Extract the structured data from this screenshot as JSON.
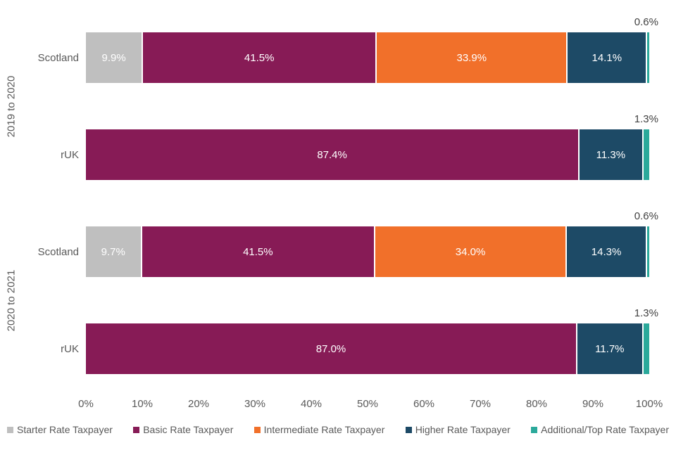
{
  "chart_data": {
    "type": "bar",
    "orientation": "horizontal",
    "stacked": true,
    "title": "",
    "xlabel": "",
    "ylabel": "",
    "xlim": [
      0,
      100
    ],
    "grid": false,
    "axis_ticks": [
      "0%",
      "10%",
      "20%",
      "30%",
      "40%",
      "50%",
      "60%",
      "70%",
      "80%",
      "90%",
      "100%"
    ],
    "legend_position": "bottom",
    "series": [
      {
        "name": "Starter Rate Taxpayer",
        "color": "#BFBFBF"
      },
      {
        "name": "Basic Rate Taxpayer",
        "color": "#871B56"
      },
      {
        "name": "Intermediate Rate Taxpayer",
        "color": "#F1702A"
      },
      {
        "name": "Higher Rate Taxpayer",
        "color": "#1D4A66"
      },
      {
        "name": "Additional/Top Rate Taxpayer",
        "color": "#2BA99B"
      }
    ],
    "groups": [
      {
        "label": "2019 to 2020",
        "rows": [
          {
            "category": "Scotland",
            "segments": [
              {
                "series": "Starter Rate Taxpayer",
                "value": 9.9,
                "label": "9.9%",
                "label_position": "inside"
              },
              {
                "series": "Basic Rate Taxpayer",
                "value": 41.5,
                "label": "41.5%",
                "label_position": "inside"
              },
              {
                "series": "Intermediate Rate Taxpayer",
                "value": 33.9,
                "label": "33.9%",
                "label_position": "inside"
              },
              {
                "series": "Higher Rate Taxpayer",
                "value": 14.1,
                "label": "14.1%",
                "label_position": "inside"
              },
              {
                "series": "Additional/Top Rate Taxpayer",
                "value": 0.6,
                "label": "0.6%",
                "label_position": "outside"
              }
            ]
          },
          {
            "category": "rUK",
            "segments": [
              {
                "series": "Basic Rate Taxpayer",
                "value": 87.4,
                "label": "87.4%",
                "label_position": "inside"
              },
              {
                "series": "Higher Rate Taxpayer",
                "value": 11.3,
                "label": "11.3%",
                "label_position": "inside"
              },
              {
                "series": "Additional/Top Rate Taxpayer",
                "value": 1.3,
                "label": "1.3%",
                "label_position": "outside"
              }
            ]
          }
        ]
      },
      {
        "label": "2020 to 2021",
        "rows": [
          {
            "category": "Scotland",
            "segments": [
              {
                "series": "Starter Rate Taxpayer",
                "value": 9.7,
                "label": "9.7%",
                "label_position": "inside"
              },
              {
                "series": "Basic Rate Taxpayer",
                "value": 41.5,
                "label": "41.5%",
                "label_position": "inside"
              },
              {
                "series": "Intermediate Rate Taxpayer",
                "value": 34.0,
                "label": "34.0%",
                "label_position": "inside"
              },
              {
                "series": "Higher Rate Taxpayer",
                "value": 14.3,
                "label": "14.3%",
                "label_position": "inside"
              },
              {
                "series": "Additional/Top Rate Taxpayer",
                "value": 0.6,
                "label": "0.6%",
                "label_position": "outside"
              }
            ]
          },
          {
            "category": "rUK",
            "segments": [
              {
                "series": "Basic Rate Taxpayer",
                "value": 87.0,
                "label": "87.0%",
                "label_position": "inside"
              },
              {
                "series": "Higher Rate Taxpayer",
                "value": 11.7,
                "label": "11.7%",
                "label_position": "inside"
              },
              {
                "series": "Additional/Top Rate Taxpayer",
                "value": 1.3,
                "label": "1.3%",
                "label_position": "outside"
              }
            ]
          }
        ]
      }
    ],
    "legend": [
      "Starter Rate Taxpayer",
      "Basic Rate Taxpayer",
      "Intermediate Rate Taxpayer",
      "Higher Rate Taxpayer",
      "Additional/Top Rate Taxpayer"
    ]
  },
  "colors": {
    "background": "#FFFFFF",
    "inside_label_text": "#FFFFFF",
    "outside_label_text": "#404040",
    "axis_text": "#595959",
    "legend_text": "#595959",
    "category_text": "#595959"
  }
}
